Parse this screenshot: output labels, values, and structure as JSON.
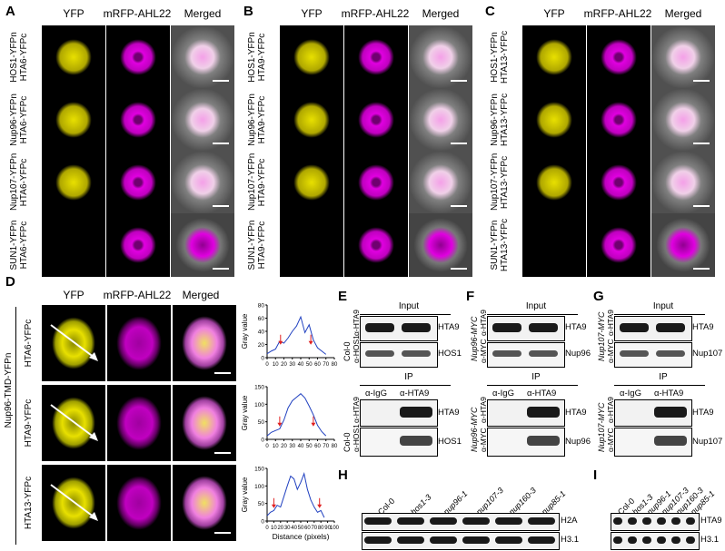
{
  "panels": {
    "A": "A",
    "B": "B",
    "C": "C",
    "D": "D",
    "E": "E",
    "F": "F",
    "G": "G",
    "H": "H",
    "I": "I"
  },
  "channel_headers": {
    "yfp": "YFP",
    "mrfp": "mRFP-AHL22",
    "merged": "Merged"
  },
  "rows": {
    "A": [
      [
        "HOS1-YFPn",
        "HTA6-YFPc"
      ],
      [
        "Nup96-YFPn",
        "HTA6-YFPc"
      ],
      [
        "Nup107-YFPn",
        "HTA6-YFPc"
      ],
      [
        "SUN1-YFPn",
        "HTA6-YFPc"
      ]
    ],
    "B": [
      [
        "HOS1-YFPn",
        "HTA9-YFPc"
      ],
      [
        "Nup96-YFPn",
        "HTA9-YFPc"
      ],
      [
        "Nup107-YFPn",
        "HTA9-YFPc"
      ],
      [
        "SUN1-YFPn",
        "HTA9-YFPc"
      ]
    ],
    "C": [
      [
        "HOS1-YFPn",
        "HTA13-YFPc"
      ],
      [
        "Nup96-YFPn",
        "HTA13-YFPc"
      ],
      [
        "Nup107-YFPn",
        "HTA13-YFPc"
      ],
      [
        "SUN1-YFPn",
        "HTA13-YFPc"
      ]
    ]
  },
  "panel_d": {
    "group": "Nup96-TMD-YFPn",
    "rows": [
      "HTA6-YFPc",
      "HTA9-YFPc",
      "HTA13-YFPc"
    ]
  },
  "colors": {
    "yfp": "#e8e000",
    "rfp": "#e000e0",
    "merged": "#f4a0e8",
    "profile": "#2040c0",
    "arrow": "#e02020"
  },
  "chart_data": [
    {
      "type": "line",
      "title": "",
      "xlabel": "",
      "ylabel": "Gray value",
      "xlim": [
        0,
        80
      ],
      "ylim": [
        0,
        80
      ],
      "xticks": [
        0,
        10,
        20,
        30,
        40,
        50,
        60,
        70,
        80
      ],
      "yticks": [
        0,
        20,
        40,
        60,
        80
      ],
      "series": [
        {
          "x": [
            0,
            5,
            10,
            15,
            20,
            25,
            30,
            35,
            40,
            45,
            50,
            55,
            60,
            65,
            70
          ],
          "values": [
            6,
            10,
            13,
            25,
            22,
            30,
            40,
            48,
            62,
            38,
            50,
            27,
            15,
            10,
            5
          ]
        }
      ],
      "arrows_x": [
        16,
        52
      ]
    },
    {
      "type": "line",
      "title": "",
      "xlabel": "",
      "ylabel": "Gray value",
      "xlim": [
        0,
        80
      ],
      "ylim": [
        0,
        150
      ],
      "xticks": [
        0,
        10,
        20,
        30,
        40,
        50,
        60,
        70,
        80
      ],
      "yticks": [
        0,
        50,
        100,
        150
      ],
      "series": [
        {
          "x": [
            0,
            5,
            10,
            15,
            20,
            25,
            30,
            35,
            40,
            45,
            50,
            55,
            60,
            65,
            70
          ],
          "values": [
            10,
            20,
            25,
            30,
            55,
            90,
            110,
            120,
            130,
            118,
            95,
            70,
            40,
            22,
            10
          ]
        }
      ],
      "arrows_x": [
        15,
        55
      ]
    },
    {
      "type": "line",
      "title": "",
      "xlabel": "Distance (pixels)",
      "ylabel": "Gray value",
      "xlim": [
        0,
        100
      ],
      "ylim": [
        0,
        150
      ],
      "xticks": [
        0,
        10,
        20,
        30,
        40,
        50,
        60,
        70,
        80,
        90,
        100
      ],
      "yticks": [
        0,
        50,
        100,
        150
      ],
      "series": [
        {
          "x": [
            0,
            5,
            10,
            15,
            20,
            25,
            30,
            35,
            40,
            45,
            50,
            55,
            60,
            65,
            70,
            75,
            80,
            85
          ],
          "values": [
            15,
            25,
            30,
            45,
            40,
            70,
            100,
            128,
            120,
            90,
            110,
            135,
            90,
            60,
            40,
            25,
            30,
            10
          ]
        }
      ],
      "arrows_x": [
        10,
        78
      ]
    }
  ],
  "blots": {
    "E": {
      "input": "Input",
      "ip": "IP",
      "colo": "Col-0",
      "ab1": "α-HTA9",
      "ab2": "α-HOS1",
      "band1": "HTA9",
      "band2": "HOS1",
      "igg": "α-IgG",
      "hta9": "α-HTA9"
    },
    "F": {
      "input": "Input",
      "ip": "IP",
      "geno": "Nup96-MYC",
      "ab1": "α-HTA9",
      "ab2": "α-MYC",
      "band1": "HTA9",
      "band2": "Nup96",
      "igg": "α-IgG",
      "hta9": "α-HTA9"
    },
    "G": {
      "input": "Input",
      "ip": "IP",
      "geno": "Nup107-MYC",
      "ab1": "α-HTA9",
      "ab2": "α-MYC",
      "band1": "HTA9",
      "band2": "Nup107",
      "igg": "α-IgG",
      "hta9": "α-HTA9"
    },
    "H": {
      "lanes": [
        "Col-0",
        "hos1-3",
        "nup96-1",
        "nup107-3",
        "nup160-3",
        "nup85-1"
      ],
      "band1": "H2A",
      "band2": "H3.1"
    },
    "I": {
      "lanes": [
        "Col-0",
        "hos1-3",
        "nup96-1",
        "nup107-3",
        "nup160-3",
        "nup85-1"
      ],
      "band1": "HTA9",
      "band2": "H3.1"
    }
  }
}
